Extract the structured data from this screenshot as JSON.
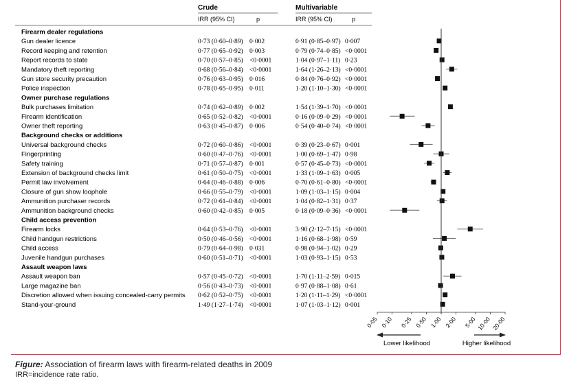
{
  "chart_data": {
    "type": "forest",
    "xscale": "log",
    "xlim": [
      0.05,
      20.0
    ],
    "ref_value": 1.0,
    "xticks": [
      "0·05",
      "0·10",
      "0·25",
      "0·50",
      "1·00",
      "2·00",
      "5·00",
      "10·00",
      "20·00"
    ],
    "xtick_values": [
      0.05,
      0.1,
      0.25,
      0.5,
      1.0,
      2.0,
      5.0,
      10.0,
      20.0
    ],
    "direction_labels": {
      "left": "Lower likelihood",
      "right": "Higher likelihood"
    },
    "column_groups": {
      "crude": "Crude",
      "multi": "Multivariable"
    },
    "column_headers": {
      "irr": "IRR (95% CI)",
      "p": "p"
    },
    "sections": [
      {
        "title": "Firearm dealer regulations",
        "rows": [
          {
            "label": "Gun dealer licence",
            "crude_irr": "0·73 (0·60–0·89)",
            "crude_p": "0·002",
            "multi_irr": "0·91 (0·85–0·97)",
            "multi_p": "0·007",
            "est": 0.91,
            "lo": 0.85,
            "hi": 0.97
          },
          {
            "label": "Record keeping and retention",
            "crude_irr": "0·77 (0·65–0·92)",
            "crude_p": "0·003",
            "multi_irr": "0·79 (0·74–0·85)",
            "multi_p": "<0·0001",
            "est": 0.79,
            "lo": 0.74,
            "hi": 0.85
          },
          {
            "label": "Report records to state",
            "crude_irr": "0·70 (0·57–0·85)",
            "crude_p": "<0·0001",
            "multi_irr": "1·04 (0·97–1·11)",
            "multi_p": "0·23",
            "est": 1.04,
            "lo": 0.97,
            "hi": 1.11
          },
          {
            "label": "Mandatory theft reporting",
            "crude_irr": "0·68 (0·56–0·84)",
            "crude_p": "<0·0001",
            "multi_irr": "1·64 (1·26–2·13)",
            "multi_p": "<0·0001",
            "est": 1.64,
            "lo": 1.26,
            "hi": 2.13
          },
          {
            "label": "Gun store security precaution",
            "crude_irr": "0·76 (0·63–0·95)",
            "crude_p": "0·016",
            "multi_irr": "0·84 (0·76–0·92)",
            "multi_p": "<0·0001",
            "est": 0.84,
            "lo": 0.76,
            "hi": 0.92
          },
          {
            "label": "Police inspection",
            "crude_irr": "0·78 (0·65–0·95)",
            "crude_p": "0·011",
            "multi_irr": "1·20 (1·10–1·30)",
            "multi_p": "<0·0001",
            "est": 1.2,
            "lo": 1.1,
            "hi": 1.3
          }
        ]
      },
      {
        "title": "Owner purchase regulations",
        "rows": [
          {
            "label": "Bulk purchases limitation",
            "crude_irr": "0·74 (0·62–0·89)",
            "crude_p": "0·002",
            "multi_irr": "1·54 (1·39–1·70)",
            "multi_p": "<0·0001",
            "est": 1.54,
            "lo": 1.39,
            "hi": 1.7
          },
          {
            "label": "Firearm identification",
            "crude_irr": "0·65 (0·52–0·82)",
            "crude_p": "<0·0001",
            "multi_irr": "0·16 (0·09–0·29)",
            "multi_p": "<0·0001",
            "est": 0.16,
            "lo": 0.09,
            "hi": 0.29
          },
          {
            "label": "Owner theft reporting",
            "crude_irr": "0·63 (0·45–0·87)",
            "crude_p": "0·006",
            "multi_irr": "0·54 (0·40–0·74)",
            "multi_p": "<0·0001",
            "est": 0.54,
            "lo": 0.4,
            "hi": 0.74
          }
        ]
      },
      {
        "title": "Background checks or additions",
        "rows": [
          {
            "label": "Universal background checks",
            "crude_irr": "0·72 (0·60–0·86)",
            "crude_p": "<0·0001",
            "multi_irr": "0·39 (0·23–0·67)",
            "multi_p": "0·001",
            "est": 0.39,
            "lo": 0.23,
            "hi": 0.67
          },
          {
            "label": "Fingerprinting",
            "crude_irr": "0·60 (0·47–0·76)",
            "crude_p": "<0·0001",
            "multi_irr": "1·00 (0·69–1·47)",
            "multi_p": "0·98",
            "est": 1.0,
            "lo": 0.69,
            "hi": 1.47
          },
          {
            "label": "Safety training",
            "crude_irr": "0·71 (0·57–0·87)",
            "crude_p": "0·001",
            "multi_irr": "0·57 (0·45–0·73)",
            "multi_p": "<0·0001",
            "est": 0.57,
            "lo": 0.45,
            "hi": 0.73
          },
          {
            "label": "Extension of background checks limit",
            "crude_irr": "0·61 (0·50–0·75)",
            "crude_p": "<0·0001",
            "multi_irr": "1·33 (1·09–1·63)",
            "multi_p": "0·005",
            "est": 1.33,
            "lo": 1.09,
            "hi": 1.63
          },
          {
            "label": "Permit law involvement",
            "crude_irr": "0·64 (0·46–0·88)",
            "crude_p": "0·006",
            "multi_irr": "0·70 (0·61–0·80)",
            "multi_p": "<0·0001",
            "est": 0.7,
            "lo": 0.61,
            "hi": 0.8
          },
          {
            "label": "Closure of gun show loophole",
            "crude_irr": "0·66 (0·55–0·79)",
            "crude_p": "<0·0001",
            "multi_irr": "1·09 (1·03–1·15)",
            "multi_p": "0·004",
            "est": 1.09,
            "lo": 1.03,
            "hi": 1.15
          },
          {
            "label": "Ammunition purchaser records",
            "crude_irr": "0·72 (0·61–0·84)",
            "crude_p": "<0·0001",
            "multi_irr": "1·04 (0·82–1·31)",
            "multi_p": "0·37",
            "est": 1.04,
            "lo": 0.82,
            "hi": 1.31
          },
          {
            "label": "Ammunition background checks",
            "crude_irr": "0·60 (0·42–0·85)",
            "crude_p": "0·005",
            "multi_irr": "0·18 (0·09–0·36)",
            "multi_p": "<0·0001",
            "est": 0.18,
            "lo": 0.09,
            "hi": 0.36
          }
        ]
      },
      {
        "title": "Child access prevention",
        "rows": [
          {
            "label": "Firearm locks",
            "crude_irr": "0·64 (0·53–0·76)",
            "crude_p": "<0·0001",
            "multi_irr": "3·90 (2·12–7·15)",
            "multi_p": "<0·0001",
            "est": 3.9,
            "lo": 2.12,
            "hi": 7.15
          },
          {
            "label": "Child handgun restrictions",
            "crude_irr": "0·50 (0·46–0·56)",
            "crude_p": "<0·0001",
            "multi_irr": "1·16 (0·68–1·98)",
            "multi_p": "0·59",
            "est": 1.16,
            "lo": 0.68,
            "hi": 1.98
          },
          {
            "label": "Child access",
            "crude_irr": "0·79 (0·64–0·98)",
            "crude_p": "0·031",
            "multi_irr": "0·98 (0·94–1·02)",
            "multi_p": "0·29",
            "est": 0.98,
            "lo": 0.94,
            "hi": 1.02
          },
          {
            "label": "Juvenile handgun purchases",
            "crude_irr": "0·60 (0·51–0·71)",
            "crude_p": "<0·0001",
            "multi_irr": "1·03 (0·93–1·15)",
            "multi_p": "0·53",
            "est": 1.03,
            "lo": 0.93,
            "hi": 1.15
          }
        ]
      },
      {
        "title": "Assault weapon laws",
        "rows": [
          {
            "label": "Assault weapon ban",
            "crude_irr": "0·57 (0·45–0·72)",
            "crude_p": "<0·0001",
            "multi_irr": "1·70 (1·11–2·59)",
            "multi_p": "0·015",
            "est": 1.7,
            "lo": 1.11,
            "hi": 2.59
          },
          {
            "label": "Large magazine ban",
            "crude_irr": "0·56 (0·43–0·73)",
            "crude_p": "<0·0001",
            "multi_irr": "0·97 (0·88–1·08)",
            "multi_p": "0·61",
            "est": 0.97,
            "lo": 0.88,
            "hi": 1.08
          },
          {
            "label": "Discretion allowed when issuing concealed-carry permits",
            "crude_irr": "0·62 (0·52–0·75)",
            "crude_p": "<0·0001",
            "multi_irr": "1·20 (1·11–1·29)",
            "multi_p": "<0·0001",
            "est": 1.2,
            "lo": 1.11,
            "hi": 1.29
          },
          {
            "label": "Stand-your-ground",
            "crude_irr": "1·49 (1·27–1·74)",
            "crude_p": "<0·0001",
            "multi_irr": "1·07 (1·03–1·12)",
            "multi_p": "0·001",
            "est": 1.07,
            "lo": 1.03,
            "hi": 1.12
          }
        ]
      }
    ]
  },
  "caption": {
    "label": "Figure:",
    "text": " Association of firearm laws with firearm-related deaths in 2009"
  },
  "footnote": "IRR=incidence rate ratio."
}
